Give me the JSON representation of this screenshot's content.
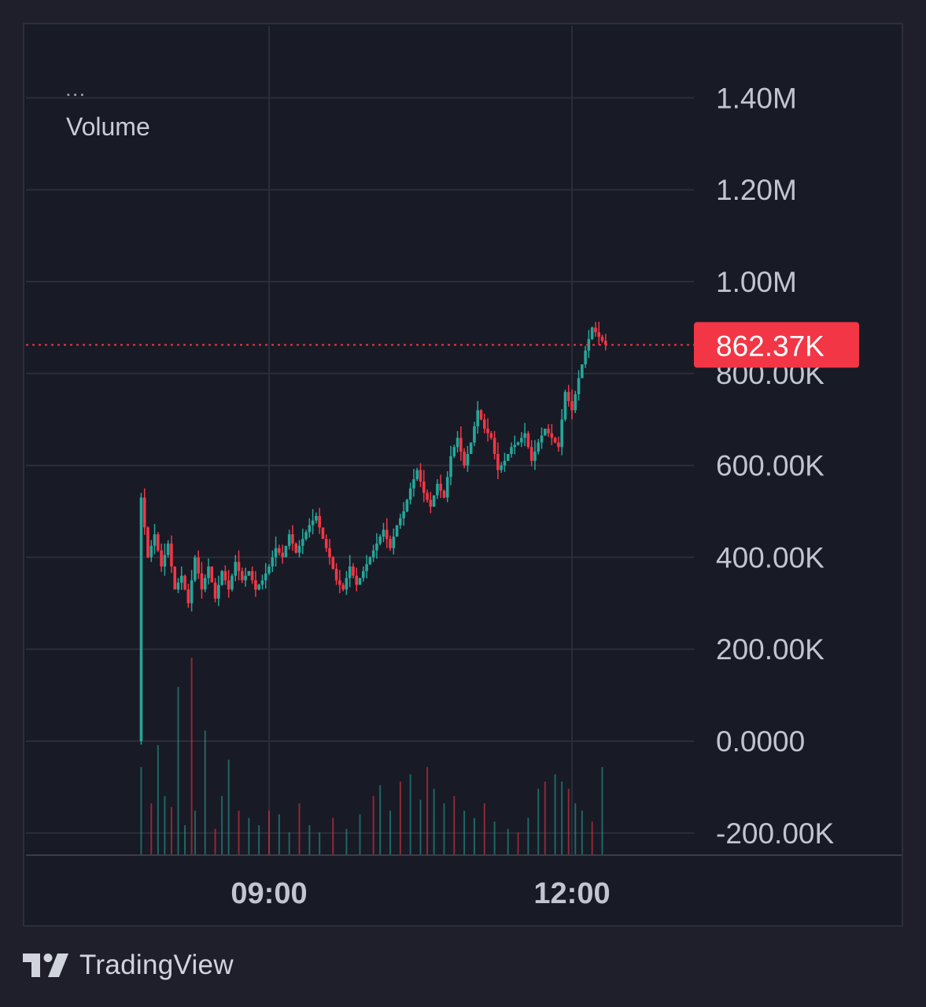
{
  "legend": {
    "menu": "...",
    "indicator": "Volume"
  },
  "brand": {
    "name": "TradingView",
    "logo_icon": "tradingview-logo-icon"
  },
  "colors": {
    "up": "#26a69a",
    "down": "#f23645",
    "grid": "#2b2e39",
    "axis_text": "#c2c5ce",
    "price_badge": "#f23645",
    "background": "#181a25"
  },
  "chart_data": {
    "type": "candlestick",
    "indicator": "Volume",
    "y_ticks": [
      {
        "value": 1400000,
        "label": "1.40M"
      },
      {
        "value": 1200000,
        "label": "1.20M"
      },
      {
        "value": 1000000,
        "label": "1.00M"
      },
      {
        "value": 800000,
        "label": "800.00K"
      },
      {
        "value": 600000,
        "label": "600.00K"
      },
      {
        "value": 400000,
        "label": "400.00K"
      },
      {
        "value": 200000,
        "label": "200.00K"
      },
      {
        "value": 0,
        "label": "0.0000"
      },
      {
        "value": -200000,
        "label": "-200.00K"
      }
    ],
    "x_ticks": [
      {
        "time": "09:00",
        "label": "09:00"
      },
      {
        "time": "12:00",
        "label": "12:00"
      }
    ],
    "x_range": [
      "06:51",
      "13:54"
    ],
    "y_range": [
      -250000,
      1555000
    ],
    "last_value": 862370,
    "last_value_label": "862.37K",
    "grid": true,
    "series_start": "07:42",
    "interval_minutes": 2,
    "close_path": [
      [
        0,
        0
      ],
      [
        1,
        530000
      ],
      [
        3,
        400000
      ],
      [
        5,
        450000
      ],
      [
        7,
        380000
      ],
      [
        9,
        430000
      ],
      [
        11,
        330000
      ],
      [
        13,
        360000
      ],
      [
        15,
        300000
      ],
      [
        17,
        400000
      ],
      [
        19,
        330000
      ],
      [
        21,
        380000
      ],
      [
        23,
        310000
      ],
      [
        25,
        370000
      ],
      [
        27,
        330000
      ],
      [
        29,
        390000
      ],
      [
        31,
        350000
      ],
      [
        33,
        370000
      ],
      [
        35,
        330000
      ],
      [
        37,
        350000
      ],
      [
        39,
        380000
      ],
      [
        41,
        420000
      ],
      [
        43,
        400000
      ],
      [
        45,
        450000
      ],
      [
        47,
        410000
      ],
      [
        49,
        440000
      ],
      [
        51,
        470000
      ],
      [
        53,
        490000
      ],
      [
        55,
        440000
      ],
      [
        57,
        400000
      ],
      [
        59,
        350000
      ],
      [
        61,
        330000
      ],
      [
        63,
        380000
      ],
      [
        65,
        340000
      ],
      [
        67,
        370000
      ],
      [
        69,
        400000
      ],
      [
        71,
        430000
      ],
      [
        73,
        460000
      ],
      [
        75,
        420000
      ],
      [
        77,
        470000
      ],
      [
        79,
        500000
      ],
      [
        81,
        550000
      ],
      [
        83,
        590000
      ],
      [
        85,
        540000
      ],
      [
        87,
        510000
      ],
      [
        89,
        560000
      ],
      [
        91,
        530000
      ],
      [
        93,
        620000
      ],
      [
        95,
        660000
      ],
      [
        97,
        600000
      ],
      [
        99,
        650000
      ],
      [
        101,
        720000
      ],
      [
        103,
        680000
      ],
      [
        105,
        660000
      ],
      [
        107,
        590000
      ],
      [
        109,
        610000
      ],
      [
        111,
        640000
      ],
      [
        113,
        650000
      ],
      [
        115,
        670000
      ],
      [
        117,
        610000
      ],
      [
        119,
        650000
      ],
      [
        121,
        680000
      ],
      [
        123,
        660000
      ],
      [
        125,
        640000
      ],
      [
        127,
        760000
      ],
      [
        129,
        720000
      ],
      [
        131,
        790000
      ],
      [
        133,
        850000
      ],
      [
        135,
        900000
      ],
      [
        137,
        880000
      ],
      [
        139,
        862370
      ]
    ],
    "volumes": [
      [
        1,
        120000
      ],
      [
        4,
        70000
      ],
      [
        6,
        150000
      ],
      [
        8,
        80000
      ],
      [
        10,
        65000
      ],
      [
        12,
        230000
      ],
      [
        14,
        40000
      ],
      [
        16,
        270000
      ],
      [
        17,
        60000
      ],
      [
        20,
        170000
      ],
      [
        23,
        35000
      ],
      [
        25,
        80000
      ],
      [
        27,
        130000
      ],
      [
        30,
        60000
      ],
      [
        33,
        50000
      ],
      [
        36,
        40000
      ],
      [
        39,
        60000
      ],
      [
        42,
        55000
      ],
      [
        45,
        30000
      ],
      [
        48,
        70000
      ],
      [
        51,
        40000
      ],
      [
        54,
        30000
      ],
      [
        58,
        50000
      ],
      [
        62,
        35000
      ],
      [
        66,
        55000
      ],
      [
        70,
        80000
      ],
      [
        72,
        95000
      ],
      [
        75,
        60000
      ],
      [
        78,
        100000
      ],
      [
        81,
        110000
      ],
      [
        84,
        75000
      ],
      [
        86,
        120000
      ],
      [
        88,
        90000
      ],
      [
        91,
        70000
      ],
      [
        94,
        80000
      ],
      [
        97,
        60000
      ],
      [
        100,
        50000
      ],
      [
        103,
        70000
      ],
      [
        106,
        45000
      ],
      [
        110,
        35000
      ],
      [
        113,
        30000
      ],
      [
        116,
        50000
      ],
      [
        119,
        90000
      ],
      [
        121,
        100000
      ],
      [
        124,
        110000
      ],
      [
        126,
        100000
      ],
      [
        128,
        90000
      ],
      [
        130,
        70000
      ],
      [
        132,
        60000
      ],
      [
        135,
        45000
      ],
      [
        138,
        120000
      ]
    ]
  }
}
